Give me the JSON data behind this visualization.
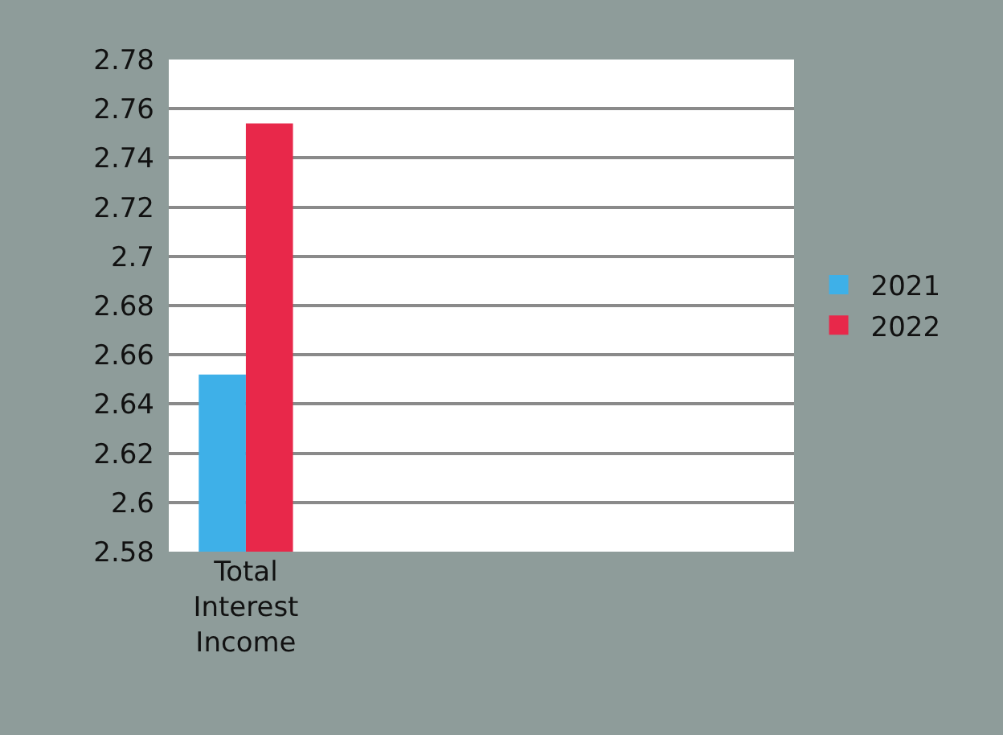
{
  "chart_data": {
    "type": "bar",
    "categories": [
      "Total Interest Income"
    ],
    "series": [
      {
        "name": "2021",
        "color": "#3eb0e8",
        "values": [
          2.652
        ]
      },
      {
        "name": "2022",
        "color": "#e8284a",
        "values": [
          2.754
        ]
      }
    ],
    "ylim": [
      2.58,
      2.78
    ],
    "yticks": [
      2.58,
      2.6,
      2.62,
      2.64,
      2.66,
      2.68,
      2.7,
      2.72,
      2.74,
      2.76,
      2.78
    ],
    "grid": "y",
    "legend": "right"
  }
}
